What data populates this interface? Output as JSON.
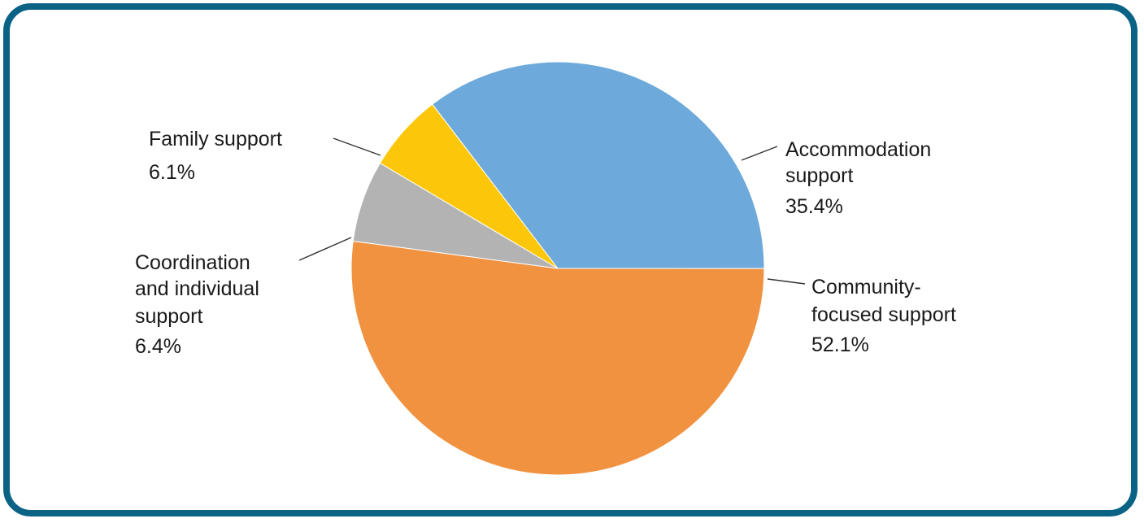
{
  "chart_data": {
    "type": "pie",
    "slices": [
      {
        "name_lines": [
          "Accommodation",
          "support"
        ],
        "value_label": "35.4%",
        "value": 35.4,
        "color": "#6daadb"
      },
      {
        "name_lines": [
          "Community-",
          "focused support"
        ],
        "value_label": "52.1%",
        "value": 52.1,
        "color": "#f19240"
      },
      {
        "name_lines": [
          "Coordination",
          "and individual",
          "support"
        ],
        "value_label": "6.4%",
        "value": 6.4,
        "color": "#b3b3b3"
      },
      {
        "name_lines": [
          "Family support"
        ],
        "value_label": "6.1%",
        "value": 6.1,
        "color": "#fcc70a"
      }
    ],
    "start_angle_deg": -37.4,
    "direction": "clockwise",
    "legend": "none"
  },
  "frame": {
    "border_color": "#0a6285"
  }
}
